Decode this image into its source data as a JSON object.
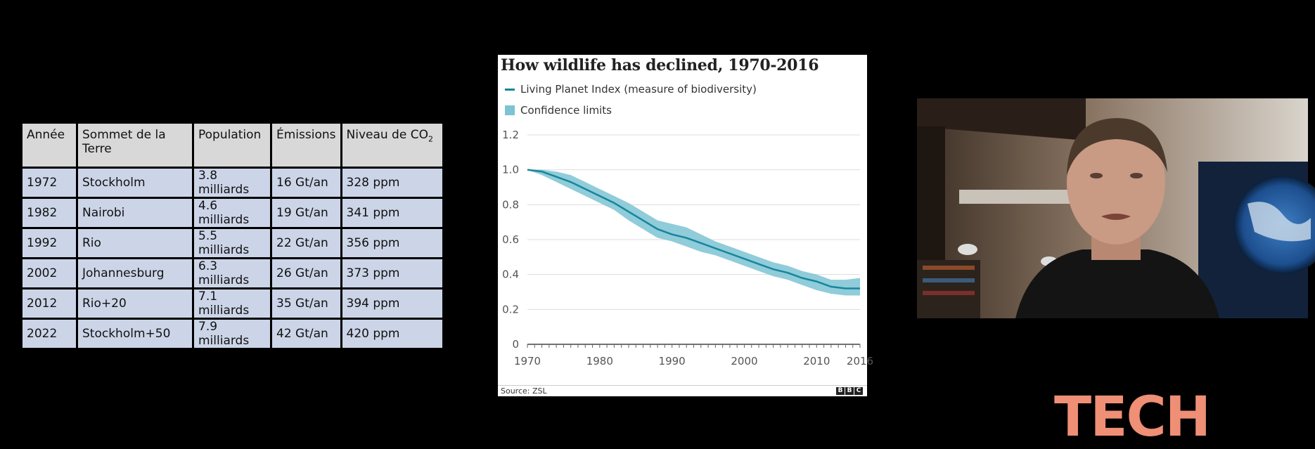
{
  "table": {
    "headers": [
      "Année",
      "Sommet de la Terre",
      "Population",
      "Émissions",
      "Niveau de CO",
      "2"
    ],
    "rows": [
      [
        "1972",
        "Stockholm",
        "3.8 milliards",
        "16 Gt/an",
        "328 ppm"
      ],
      [
        "1982",
        "Nairobi",
        "4.6 milliards",
        "19 Gt/an",
        "341 ppm"
      ],
      [
        "1992",
        "Rio",
        "5.5 milliards",
        "22 Gt/an",
        "356 ppm"
      ],
      [
        "2002",
        "Johannesburg",
        "6.3 milliards",
        "26 Gt/an",
        "373 ppm"
      ],
      [
        "2012",
        "Rio+20",
        "7.1 milliards",
        "35 Gt/an",
        "394 ppm"
      ],
      [
        "2022",
        "Stockholm+50",
        "7.9 milliards",
        "42 Gt/an",
        "420 ppm"
      ]
    ]
  },
  "chart": {
    "title": "How wildlife has declined, 1970-2016",
    "legend_line": "Living Planet Index (measure of biodiversity)",
    "legend_band": "Confidence limits",
    "source": "Source: ZSL",
    "logo_letters": [
      "B",
      "B",
      "C"
    ]
  },
  "chart_data": {
    "type": "area",
    "title": "How wildlife has declined, 1970-2016",
    "xlabel": "",
    "ylabel": "",
    "x_ticks": [
      "1970",
      "1980",
      "1990",
      "2000",
      "2010",
      "2016"
    ],
    "y_ticks": [
      "0",
      "0.2",
      "0.4",
      "0.6",
      "0.8",
      "1.0",
      "1.2"
    ],
    "xlim": [
      1970,
      2016
    ],
    "ylim": [
      0,
      1.2
    ],
    "grid": true,
    "legend_position": "top-left",
    "series": [
      {
        "name": "Living Planet Index (measure of biodiversity)",
        "x": [
          1970,
          1972,
          1974,
          1976,
          1978,
          1980,
          1982,
          1984,
          1986,
          1988,
          1990,
          1992,
          1994,
          1996,
          1998,
          2000,
          2002,
          2004,
          2006,
          2008,
          2010,
          2012,
          2014,
          2016
        ],
        "values": [
          1.0,
          0.99,
          0.96,
          0.93,
          0.89,
          0.85,
          0.81,
          0.76,
          0.71,
          0.66,
          0.63,
          0.61,
          0.58,
          0.55,
          0.52,
          0.49,
          0.46,
          0.43,
          0.41,
          0.38,
          0.36,
          0.33,
          0.32,
          0.32
        ]
      },
      {
        "name": "Confidence limits",
        "x": [
          1970,
          1972,
          1974,
          1976,
          1978,
          1980,
          1982,
          1984,
          1986,
          1988,
          1990,
          1992,
          1994,
          1996,
          1998,
          2000,
          2002,
          2004,
          2006,
          2008,
          2010,
          2012,
          2014,
          2016
        ],
        "upper": [
          1.0,
          1.0,
          0.99,
          0.97,
          0.93,
          0.89,
          0.85,
          0.81,
          0.76,
          0.71,
          0.69,
          0.67,
          0.63,
          0.59,
          0.56,
          0.53,
          0.5,
          0.47,
          0.45,
          0.42,
          0.4,
          0.37,
          0.37,
          0.38
        ],
        "lower": [
          1.0,
          0.97,
          0.93,
          0.89,
          0.85,
          0.81,
          0.77,
          0.71,
          0.66,
          0.61,
          0.59,
          0.56,
          0.53,
          0.51,
          0.48,
          0.45,
          0.42,
          0.39,
          0.37,
          0.34,
          0.31,
          0.29,
          0.28,
          0.28
        ]
      }
    ]
  },
  "branding": {
    "tech_text": "TECH"
  },
  "colors": {
    "line": "#17869a",
    "band": "#7cc3d3",
    "table_header": "#d8d8d8",
    "table_cell": "#ccd5e8",
    "tech_logo": "#ef8f75"
  }
}
